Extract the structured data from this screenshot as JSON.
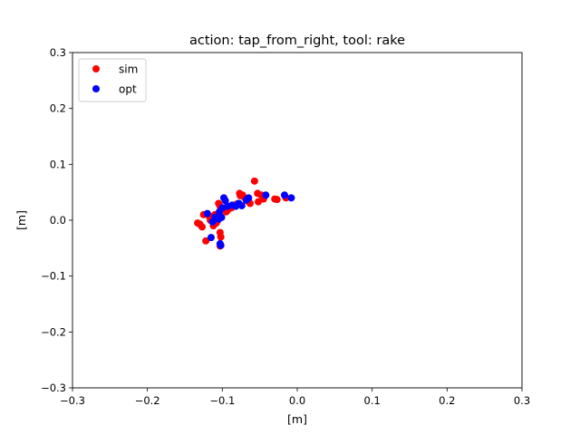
{
  "chart_data": {
    "type": "scatter",
    "title": "action: tap_from_right, tool: rake",
    "xlabel": "[m]",
    "ylabel": "[m]",
    "xlim": [
      -0.3,
      0.3
    ],
    "ylim": [
      -0.3,
      0.3
    ],
    "xticks": [
      -0.3,
      -0.2,
      -0.1,
      0.0,
      0.1,
      0.2,
      0.3
    ],
    "xtick_labels": [
      "−0.3",
      "−0.2",
      "−0.1",
      "0.0",
      "0.1",
      "0.2",
      "0.3"
    ],
    "yticks": [
      0.3,
      0.2,
      0.1,
      0.0,
      -0.1,
      -0.2,
      -0.3
    ],
    "ytick_labels": [
      "0.3",
      "0.2",
      "0.1",
      "0.0",
      "−0.1",
      "−0.2",
      "−0.3"
    ],
    "grid": false,
    "legend_position": "top-left",
    "series": [
      {
        "name": "sim",
        "color": "#ff0000",
        "points": [
          [
            -0.133,
            -0.005
          ],
          [
            -0.13,
            -0.007
          ],
          [
            -0.127,
            -0.012
          ],
          [
            -0.125,
            0.01
          ],
          [
            -0.122,
            -0.037
          ],
          [
            -0.118,
            0.008
          ],
          [
            -0.116,
            0.0
          ],
          [
            -0.113,
            0.005
          ],
          [
            -0.112,
            -0.01
          ],
          [
            -0.11,
            0.01
          ],
          [
            -0.108,
            -0.005
          ],
          [
            -0.106,
            0.0
          ],
          [
            -0.105,
            0.03
          ],
          [
            -0.103,
            0.025
          ],
          [
            -0.102,
            0.02
          ],
          [
            -0.103,
            -0.022
          ],
          [
            -0.102,
            -0.03
          ],
          [
            -0.103,
            -0.046
          ],
          [
            -0.098,
            0.02
          ],
          [
            -0.095,
            0.015
          ],
          [
            -0.093,
            0.018
          ],
          [
            -0.088,
            0.022
          ],
          [
            -0.085,
            0.025
          ],
          [
            -0.082,
            0.028
          ],
          [
            -0.079,
            0.03
          ],
          [
            -0.077,
            0.048
          ],
          [
            -0.076,
            0.044
          ],
          [
            -0.073,
            0.045
          ],
          [
            -0.07,
            0.04
          ],
          [
            -0.067,
            0.035
          ],
          [
            -0.065,
            0.035
          ],
          [
            -0.063,
            0.03
          ],
          [
            -0.057,
            0.07
          ],
          [
            -0.053,
            0.048
          ],
          [
            -0.052,
            0.033
          ],
          [
            -0.048,
            0.045
          ],
          [
            -0.045,
            0.038
          ],
          [
            -0.03,
            0.038
          ],
          [
            -0.027,
            0.037
          ],
          [
            -0.015,
            0.04
          ]
        ]
      },
      {
        "name": "opt",
        "color": "#0000ff",
        "points": [
          [
            -0.12,
            0.012
          ],
          [
            -0.115,
            -0.031
          ],
          [
            -0.113,
            -0.003
          ],
          [
            -0.11,
            0.005
          ],
          [
            -0.105,
            0.002
          ],
          [
            -0.104,
            0.015
          ],
          [
            -0.103,
            -0.042
          ],
          [
            -0.102,
            -0.045
          ],
          [
            -0.101,
            0.005
          ],
          [
            -0.1,
            0.022
          ],
          [
            -0.098,
            0.04
          ],
          [
            -0.096,
            0.035
          ],
          [
            -0.093,
            0.025
          ],
          [
            -0.087,
            0.027
          ],
          [
            -0.082,
            0.025
          ],
          [
            -0.078,
            0.03
          ],
          [
            -0.074,
            0.026
          ],
          [
            -0.068,
            0.036
          ],
          [
            -0.065,
            0.04
          ],
          [
            -0.042,
            0.045
          ],
          [
            -0.017,
            0.045
          ],
          [
            -0.008,
            0.04
          ]
        ]
      }
    ]
  }
}
